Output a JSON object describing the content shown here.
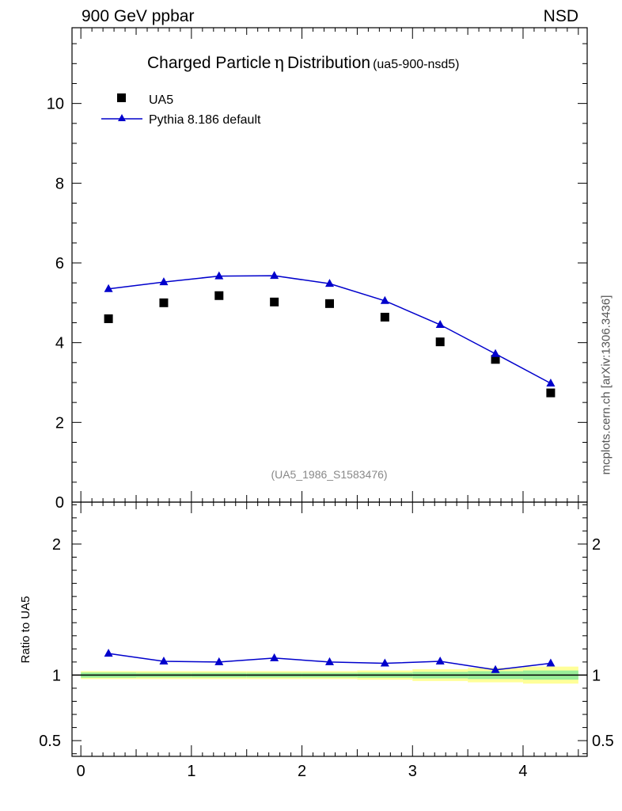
{
  "header": {
    "left": "900 GeV ppbar",
    "right": "NSD"
  },
  "watermark": "mcplots.cern.ch [arXiv:1306.3436]",
  "colors": {
    "data": "#000000",
    "mc": "#0000cc",
    "band_inner": "#99ee99",
    "band_outer": "#ffff99",
    "reference": "#888888"
  },
  "chart_data": [
    {
      "type": "scatter",
      "title_main": "Charged Particle",
      "title_symbol": "η",
      "title_main2": "Distribution",
      "title_tag": "(ua5-900-nsd5)",
      "reference": "(UA5_1986_S1583476)",
      "xlabel": "",
      "ylabel": "",
      "xlim": [
        -0.08,
        4.58
      ],
      "ylim": [
        0,
        11.9
      ],
      "y_ticks": [
        0,
        2,
        4,
        6,
        8,
        10
      ],
      "y_tick_labels": [
        "0",
        "2",
        "4",
        "6",
        "8",
        "10"
      ],
      "legend_position": "top-left",
      "series": [
        {
          "name": "UA5",
          "style": "square-markers",
          "x": [
            0.25,
            0.75,
            1.25,
            1.75,
            2.25,
            2.75,
            3.25,
            3.75,
            4.25
          ],
          "y": [
            4.6,
            5.0,
            5.18,
            5.02,
            4.98,
            4.64,
            4.02,
            3.58,
            2.74
          ]
        },
        {
          "name": "Pythia 8.186 default",
          "style": "line-triangle",
          "x": [
            0.25,
            0.75,
            1.25,
            1.75,
            2.25,
            2.75,
            3.25,
            3.75,
            4.25
          ],
          "y": [
            5.35,
            5.52,
            5.67,
            5.68,
            5.48,
            5.05,
            4.45,
            3.72,
            2.98
          ]
        }
      ]
    },
    {
      "type": "line",
      "ylabel": "Ratio to UA5",
      "xlim": [
        -0.08,
        4.58
      ],
      "ylim": [
        0.38,
        2.32
      ],
      "x_ticks": [
        0,
        1,
        2,
        3,
        4
      ],
      "x_tick_labels": [
        "0",
        "1",
        "2",
        "3",
        "4"
      ],
      "y_ticks": [
        0.5,
        1,
        2
      ],
      "y_tick_labels": [
        "0.5",
        "1",
        "2"
      ],
      "bins": [
        [
          0,
          0.5
        ],
        [
          0.5,
          1
        ],
        [
          1,
          1.5
        ],
        [
          1.5,
          2
        ],
        [
          2,
          2.5
        ],
        [
          2.5,
          3
        ],
        [
          3,
          3.5
        ],
        [
          3.5,
          4
        ],
        [
          4,
          4.5
        ]
      ],
      "band_inner_halfwidth": [
        0.02,
        0.018,
        0.018,
        0.018,
        0.018,
        0.02,
        0.025,
        0.03,
        0.035
      ],
      "band_outer_halfwidth": [
        0.03,
        0.03,
        0.03,
        0.03,
        0.03,
        0.035,
        0.045,
        0.055,
        0.065
      ],
      "series": [
        {
          "name": "Pythia 8.186 default",
          "x": [
            0.25,
            0.75,
            1.25,
            1.75,
            2.25,
            2.75,
            3.25,
            3.75,
            4.25
          ],
          "y": [
            1.165,
            1.105,
            1.1,
            1.13,
            1.1,
            1.09,
            1.105,
            1.04,
            1.09
          ]
        }
      ]
    }
  ]
}
